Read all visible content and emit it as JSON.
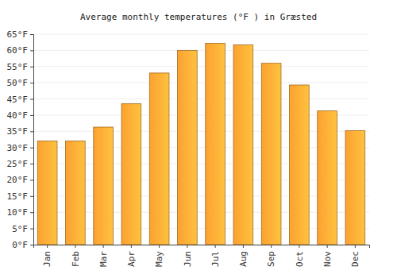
{
  "chart_data": {
    "type": "bar",
    "title": "Average monthly temperatures (°F ) in Græsted",
    "categories": [
      "Jan",
      "Feb",
      "Mar",
      "Apr",
      "May",
      "Jun",
      "Jul",
      "Aug",
      "Sep",
      "Oct",
      "Nov",
      "Dec"
    ],
    "values": [
      32,
      32,
      36.3,
      43.5,
      53,
      60,
      62.2,
      61.7,
      56,
      49.3,
      41.3,
      35.2
    ],
    "color": "#fca130",
    "ylim": [
      0,
      65
    ],
    "yticks": [
      {
        "value": 0,
        "label": "0°F"
      },
      {
        "value": 5,
        "label": "5°F"
      },
      {
        "value": 10,
        "label": "10°F"
      },
      {
        "value": 15,
        "label": "15°F"
      },
      {
        "value": 20,
        "label": "20°F"
      },
      {
        "value": 25,
        "label": "25°F"
      },
      {
        "value": 30,
        "label": "30°F"
      },
      {
        "value": 35,
        "label": "35°F"
      },
      {
        "value": 40,
        "label": "40°F"
      },
      {
        "value": 45,
        "label": "45°F"
      },
      {
        "value": 50,
        "label": "50°F"
      },
      {
        "value": 55,
        "label": "55°F"
      },
      {
        "value": 60,
        "label": "60°F"
      },
      {
        "value": 65,
        "label": "65°F"
      }
    ],
    "grid": true
  }
}
